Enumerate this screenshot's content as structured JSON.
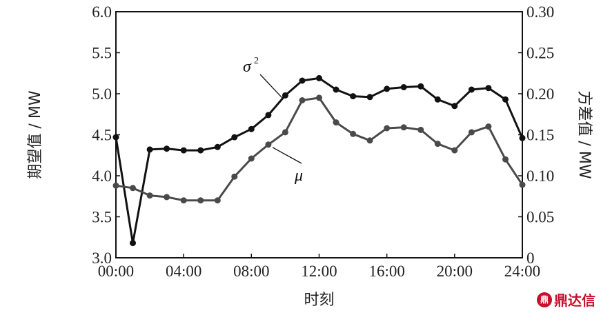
{
  "chart_data": {
    "type": "line",
    "xlabel": "时刻",
    "ylabel_left": "期望值 / MW",
    "ylabel_right": "方差值 / MW",
    "x_ticks": [
      "00:00",
      "04:00",
      "08:00",
      "12:00",
      "16:00",
      "20:00",
      "24:00"
    ],
    "y_left_ticks": [
      "6.0",
      "5.5",
      "5.0",
      "4.5",
      "4.0",
      "3.5",
      "3.0"
    ],
    "y_right_ticks": [
      "0.30",
      "0.25",
      "0.20",
      "0.15",
      "0.10",
      "0.05",
      "0"
    ],
    "y_left_lim": [
      3.0,
      6.0
    ],
    "y_right_lim": [
      0,
      0.3
    ],
    "x_hours": [
      0,
      1,
      2,
      3,
      4,
      5,
      6,
      7,
      8,
      9,
      10,
      11,
      12,
      13,
      14,
      15,
      16,
      17,
      18,
      19,
      20,
      21,
      22,
      23,
      24
    ],
    "grid": false,
    "series": [
      {
        "name": "σ",
        "name_sup": "2",
        "axis": "right",
        "color": "#111111",
        "values": [
          0.147,
          0.018,
          0.132,
          0.133,
          0.131,
          0.131,
          0.135,
          0.147,
          0.157,
          0.174,
          0.198,
          0.216,
          0.219,
          0.205,
          0.197,
          0.196,
          0.206,
          0.208,
          0.209,
          0.193,
          0.185,
          0.205,
          0.207,
          0.193,
          0.146
        ]
      },
      {
        "name": "μ",
        "axis": "left",
        "color": "#4a4a4a",
        "values": [
          3.88,
          3.85,
          3.76,
          3.74,
          3.7,
          3.7,
          3.7,
          3.99,
          4.21,
          4.38,
          4.53,
          4.92,
          4.95,
          4.65,
          4.51,
          4.43,
          4.58,
          4.59,
          4.56,
          4.39,
          4.31,
          4.53,
          4.6,
          4.2,
          3.89
        ]
      }
    ]
  },
  "watermark": {
    "logo": "鼎",
    "text": "鼎达信"
  }
}
